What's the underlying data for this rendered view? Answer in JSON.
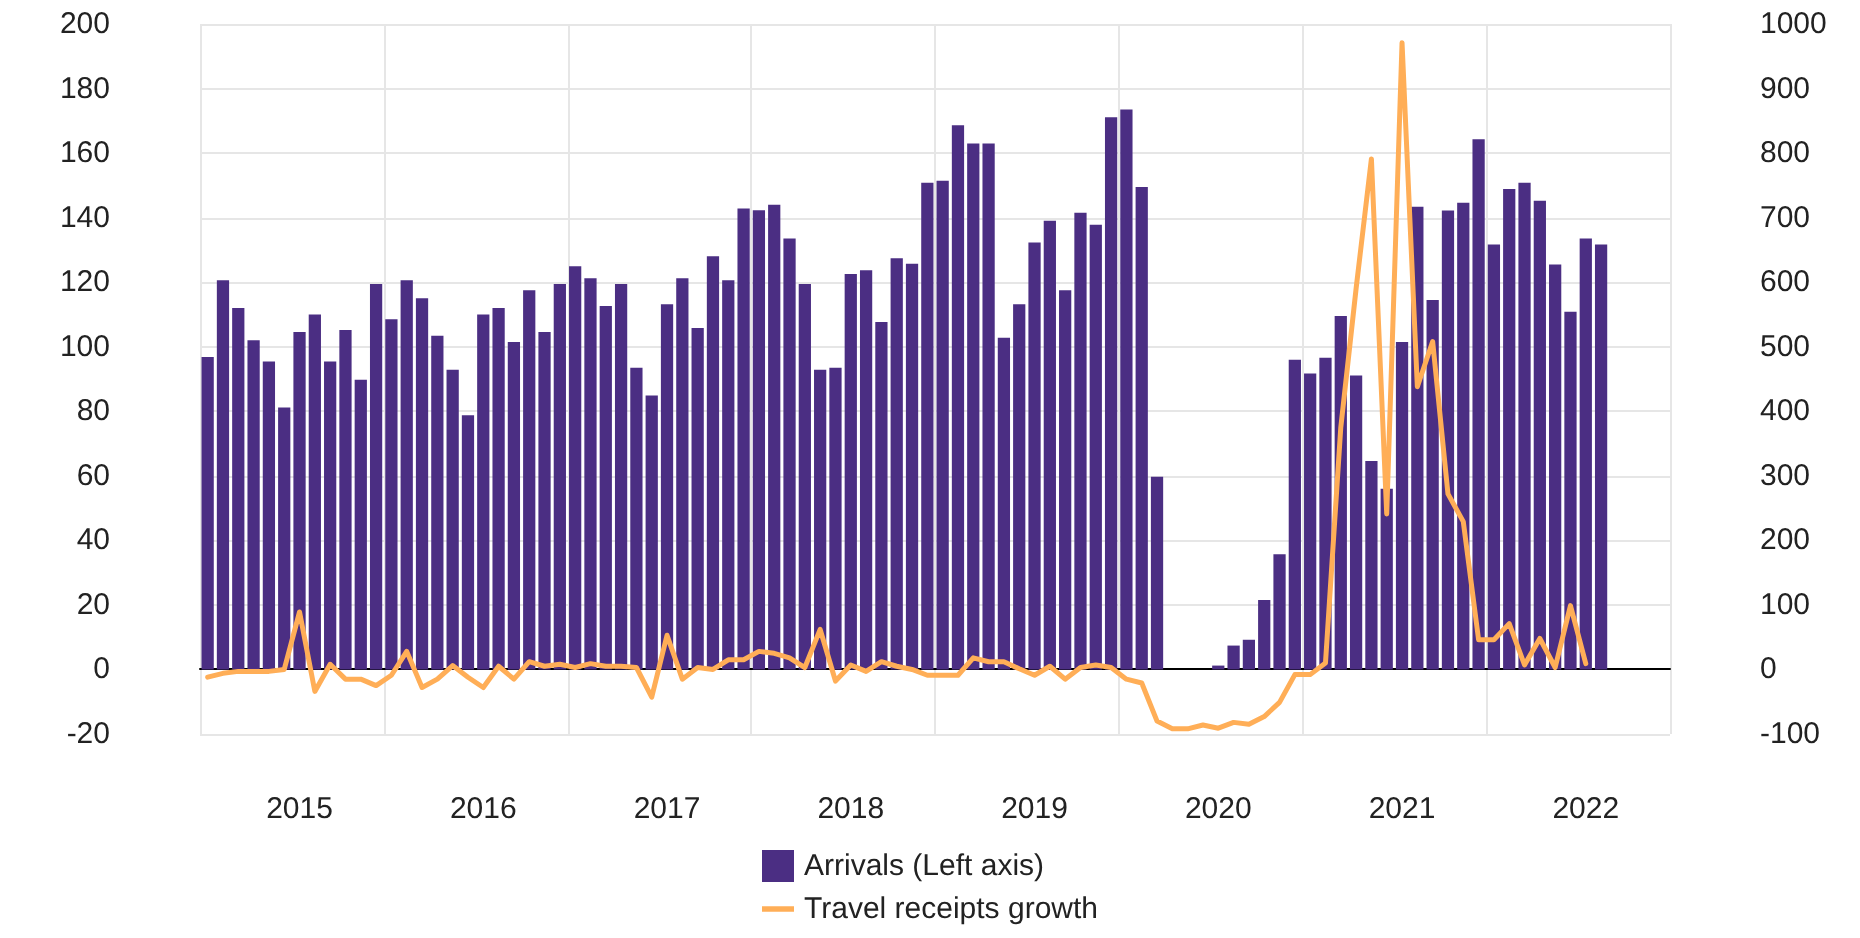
{
  "chart_data": {
    "type": "bar",
    "categories": [
      null,
      null,
      null,
      null,
      null,
      null,
      "2015",
      null,
      null,
      null,
      null,
      null,
      null,
      null,
      null,
      null,
      null,
      null,
      "2016",
      null,
      null,
      null,
      null,
      null,
      null,
      null,
      null,
      null,
      null,
      null,
      "2017",
      null,
      null,
      null,
      null,
      null,
      null,
      null,
      null,
      null,
      null,
      null,
      "2018",
      null,
      null,
      null,
      null,
      null,
      null,
      null,
      null,
      null,
      null,
      null,
      "2019",
      null,
      null,
      null,
      null,
      null,
      null,
      null,
      null,
      null,
      null,
      null,
      "2020",
      null,
      null,
      null,
      null,
      null,
      null,
      null,
      null,
      null,
      null,
      null,
      "2021",
      null,
      null,
      null,
      null,
      null,
      null,
      null,
      null,
      null,
      null,
      null,
      "2022",
      null,
      null,
      null,
      null,
      null
    ],
    "series": [
      {
        "name": "Arrivals (Left axis)",
        "color": "#4b2e83",
        "values": [
          96.8,
          120.6,
          112,
          102,
          95.4,
          81.2,
          104.6,
          110,
          95.4,
          105.2,
          89.8,
          119.4,
          108.5,
          120.6,
          115,
          103.4,
          92.9,
          78.8,
          110,
          112,
          101.5,
          117.5,
          104.6,
          119.4,
          124.9,
          121.2,
          112.6,
          119.4,
          93.5,
          84.9,
          113.2,
          121.2,
          105.8,
          128,
          120.6,
          142.8,
          142.3,
          144,
          133.5,
          119.4,
          92.9,
          93.5,
          122.5,
          123.7,
          107.7,
          127.4,
          125.7,
          150.8,
          151.4,
          168.6,
          163,
          163,
          102.8,
          113.2,
          132.3,
          139,
          117.5,
          141.5,
          137.8,
          171.1,
          173.5,
          149.5,
          59.7,
          0,
          0,
          0,
          1.2,
          7.4,
          9.2,
          21.5,
          35.7,
          96,
          91.7,
          96.6,
          109.5,
          91.1,
          64.6,
          56,
          101.5,
          143.4,
          114.5,
          142.2,
          144.6,
          164.3,
          131.7,
          148.9,
          150.8,
          145.2,
          125.5,
          110.8,
          133.5,
          131.7,
          null,
          null,
          null,
          null
        ]
      },
      {
        "name": "Travel receipts growth",
        "type": "line",
        "axis": "y2",
        "color": "#ffae57",
        "values": [
          -12,
          -6,
          -3,
          -3,
          -3,
          0,
          89,
          -34,
          8,
          -15,
          -15,
          -25,
          -9,
          28,
          -28,
          -15,
          6,
          -12,
          -28,
          5,
          -15,
          12,
          5,
          8,
          3,
          9,
          5,
          5,
          3,
          -43,
          53,
          -15,
          3,
          0,
          15,
          15,
          28,
          25,
          18,
          3,
          62,
          -18,
          7,
          -3,
          12,
          5,
          0,
          -9,
          -9,
          -9,
          18,
          12,
          12,
          1,
          -9,
          5,
          -15,
          3,
          7,
          3,
          -15,
          -21,
          -80,
          -92,
          -92,
          -86,
          -91,
          -82,
          -85,
          -73,
          -51,
          -8,
          -8,
          10,
          375,
          590,
          791,
          241,
          971,
          438,
          508,
          272,
          229,
          46,
          46,
          71,
          7,
          48,
          3,
          99,
          9,
          null,
          null,
          null,
          null,
          null
        ]
      }
    ],
    "ylim": [
      -20,
      200
    ],
    "yticks": [
      -20,
      0,
      20,
      40,
      60,
      80,
      100,
      120,
      140,
      160,
      180,
      200
    ],
    "y2lim": [
      -100,
      1000
    ],
    "y2ticks": [
      -100,
      0,
      100,
      200,
      300,
      400,
      500,
      600,
      700,
      800,
      900,
      1000
    ],
    "grid": true,
    "legend": "bottom",
    "marker": "none",
    "line_style": "solid"
  }
}
